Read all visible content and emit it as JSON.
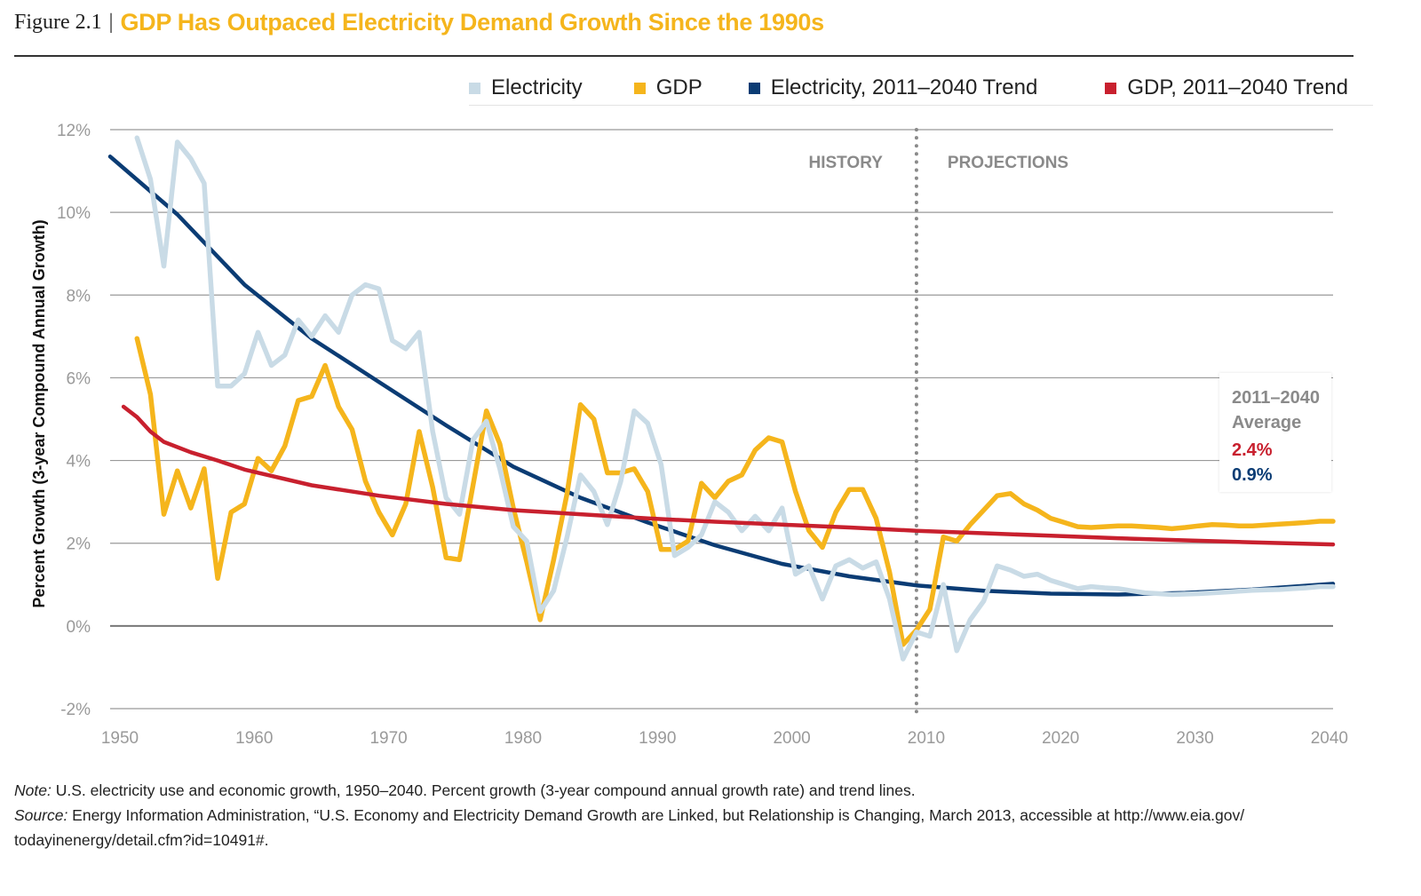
{
  "header": {
    "figure_label": "Figure 2.1",
    "separator": "|",
    "title": "GDP Has Outpaced Electricity Demand Growth Since the 1990s"
  },
  "legend": [
    {
      "label": "Electricity",
      "color": "#c9dbe6"
    },
    {
      "label": "GDP",
      "color": "#f5b51c"
    },
    {
      "label": "Electricity, 2011–2040 Trend",
      "color": "#0b3c74"
    },
    {
      "label": "GDP, 2011–2040 Trend",
      "color": "#c8202e"
    }
  ],
  "average_box": {
    "title_line1": "2011–2040",
    "title_line2": "Average",
    "gdp_value": "2.4%",
    "electricity_value": "0.9%"
  },
  "notes": {
    "note_label": "Note:",
    "note_text": " U.S. electricity use and economic growth, 1950–2040. Percent growth (3-year compound annual growth rate) and trend lines.",
    "source_label": "Source:",
    "source_text": " Energy Information Administration, “U.S. Economy and Electricity Demand Growth are Linked, but Relationship is Changing, March 2013, accessible at  http://www.eia.gov/",
    "source_text2": "todayinenergy/detail.cfm?id=10491#."
  },
  "chart_data": {
    "type": "line",
    "title": "GDP Has Outpaced Electricity Demand Growth Since the 1990s",
    "ylabel": "Percent Growth (3-year Compound Annual Growth)",
    "xlabel": "",
    "xlim": [
      1950,
      2041
    ],
    "ylim": [
      -2,
      12
    ],
    "y_ticks": [
      -2,
      0,
      2,
      4,
      6,
      8,
      10,
      12
    ],
    "y_tick_labels": [
      "-2%",
      "0%",
      "2%",
      "4%",
      "6%",
      "8%",
      "10%",
      "12%"
    ],
    "x_ticks": [
      1950,
      1960,
      1970,
      1980,
      1990,
      2000,
      2010,
      2020,
      2030,
      2040
    ],
    "x_tick_labels": [
      "1950",
      "1960",
      "1970",
      "1980",
      "1990",
      "2000",
      "2010",
      "2020",
      "2030",
      "2040"
    ],
    "grid": "horizontal",
    "legend_position": "top",
    "divider": {
      "x": 2010,
      "left_label": "HISTORY",
      "right_label": "PROJECTIONS"
    },
    "series": [
      {
        "name": "Electricity",
        "color": "#c9dbe6",
        "x": [
          1952,
          1953,
          1954,
          1955,
          1956,
          1957,
          1958,
          1959,
          1960,
          1961,
          1962,
          1963,
          1964,
          1965,
          1966,
          1967,
          1968,
          1969,
          1970,
          1971,
          1972,
          1973,
          1974,
          1975,
          1976,
          1977,
          1978,
          1979,
          1980,
          1981,
          1982,
          1983,
          1984,
          1985,
          1986,
          1987,
          1988,
          1989,
          1990,
          1991,
          1992,
          1993,
          1994,
          1995,
          1996,
          1997,
          1998,
          1999,
          2000,
          2001,
          2002,
          2003,
          2004,
          2005,
          2006,
          2007,
          2008,
          2009,
          2010,
          2011,
          2012,
          2013,
          2014,
          2015,
          2016,
          2017,
          2018,
          2019,
          2020,
          2021,
          2022,
          2023,
          2024,
          2025,
          2026,
          2027,
          2028,
          2029,
          2030,
          2031,
          2032,
          2033,
          2034,
          2035,
          2036,
          2037,
          2038,
          2039,
          2040,
          2041
        ],
        "values": [
          11.8,
          10.8,
          8.7,
          11.7,
          11.3,
          10.7,
          5.8,
          5.8,
          6.1,
          7.1,
          6.3,
          6.55,
          7.4,
          7.0,
          7.5,
          7.1,
          8.0,
          8.25,
          8.15,
          6.9,
          6.7,
          7.1,
          4.7,
          3.1,
          2.7,
          4.5,
          4.95,
          3.8,
          2.4,
          2.05,
          0.35,
          0.85,
          2.15,
          3.65,
          3.25,
          2.45,
          3.5,
          5.2,
          4.9,
          3.9,
          1.7,
          1.9,
          2.2,
          3.0,
          2.75,
          2.3,
          2.65,
          2.3,
          2.85,
          1.25,
          1.45,
          0.65,
          1.45,
          1.6,
          1.4,
          1.55,
          0.65,
          -0.8,
          -0.15,
          -0.25,
          1.0,
          -0.6,
          0.15,
          0.6,
          1.45,
          1.35,
          1.2,
          1.25,
          1.1,
          1.0,
          0.9,
          0.95,
          0.92,
          0.9,
          0.85,
          0.8,
          0.78,
          0.76,
          0.77,
          0.78,
          0.8,
          0.82,
          0.84,
          0.86,
          0.87,
          0.88,
          0.9,
          0.92,
          0.95,
          0.95
        ]
      },
      {
        "name": "GDP",
        "color": "#f5b51c",
        "x": [
          1952,
          1953,
          1954,
          1955,
          1956,
          1957,
          1958,
          1959,
          1960,
          1961,
          1962,
          1963,
          1964,
          1965,
          1966,
          1967,
          1968,
          1969,
          1970,
          1971,
          1972,
          1973,
          1974,
          1975,
          1976,
          1977,
          1978,
          1979,
          1980,
          1981,
          1982,
          1983,
          1984,
          1985,
          1986,
          1987,
          1988,
          1989,
          1990,
          1991,
          1992,
          1993,
          1994,
          1995,
          1996,
          1997,
          1998,
          1999,
          2000,
          2001,
          2002,
          2003,
          2004,
          2005,
          2006,
          2007,
          2008,
          2009,
          2010,
          2011,
          2012,
          2013,
          2014,
          2015,
          2016,
          2017,
          2018,
          2019,
          2020,
          2021,
          2022,
          2023,
          2024,
          2025,
          2026,
          2027,
          2028,
          2029,
          2030,
          2031,
          2032,
          2033,
          2034,
          2035,
          2036,
          2037,
          2038,
          2039,
          2040,
          2041
        ],
        "values": [
          6.95,
          5.6,
          2.7,
          3.75,
          2.85,
          3.8,
          1.15,
          2.75,
          2.95,
          4.05,
          3.75,
          4.35,
          5.45,
          5.55,
          6.3,
          5.3,
          4.75,
          3.5,
          2.75,
          2.2,
          2.95,
          4.7,
          3.35,
          1.65,
          1.6,
          3.4,
          5.2,
          4.4,
          2.85,
          1.55,
          0.15,
          1.6,
          3.2,
          5.35,
          5.0,
          3.7,
          3.7,
          3.8,
          3.25,
          1.85,
          1.85,
          2.05,
          3.45,
          3.1,
          3.5,
          3.65,
          4.25,
          4.55,
          4.45,
          3.25,
          2.3,
          1.9,
          2.75,
          3.3,
          3.3,
          2.6,
          1.3,
          -0.45,
          -0.1,
          0.4,
          2.15,
          2.05,
          2.45,
          2.8,
          3.15,
          3.2,
          2.95,
          2.8,
          2.6,
          2.5,
          2.4,
          2.38,
          2.4,
          2.42,
          2.42,
          2.4,
          2.38,
          2.35,
          2.38,
          2.42,
          2.45,
          2.44,
          2.42,
          2.42,
          2.44,
          2.46,
          2.48,
          2.5,
          2.53,
          2.53
        ]
      },
      {
        "name": "Electricity, 2011–2040 Trend",
        "color": "#0b3c74",
        "x": [
          1950,
          1955,
          1960,
          1965,
          1970,
          1975,
          1980,
          1985,
          1990,
          1995,
          2000,
          2005,
          2010,
          2015,
          2020,
          2025,
          2030,
          2035,
          2041
        ],
        "values": [
          11.35,
          9.95,
          8.25,
          6.95,
          5.9,
          4.85,
          3.85,
          3.1,
          2.5,
          1.95,
          1.5,
          1.2,
          0.98,
          0.85,
          0.78,
          0.76,
          0.8,
          0.88,
          1.02
        ]
      },
      {
        "name": "GDP, 2011–2040 Trend",
        "color": "#c8202e",
        "x": [
          1951,
          1952,
          1953,
          1954,
          1956,
          1958,
          1960,
          1965,
          1970,
          1975,
          1980,
          1985,
          1990,
          1995,
          2000,
          2005,
          2010,
          2015,
          2020,
          2025,
          2030,
          2035,
          2041
        ],
        "values": [
          5.3,
          5.05,
          4.7,
          4.45,
          4.2,
          4.0,
          3.78,
          3.4,
          3.15,
          2.95,
          2.8,
          2.7,
          2.6,
          2.52,
          2.45,
          2.38,
          2.3,
          2.24,
          2.18,
          2.12,
          2.07,
          2.02,
          1.97
        ]
      }
    ]
  }
}
